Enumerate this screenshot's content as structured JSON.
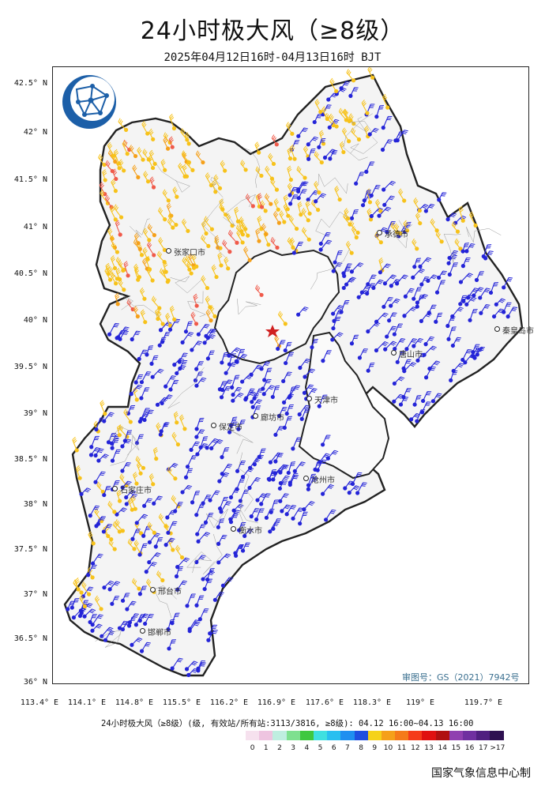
{
  "title": "24小时极大风（≥8级）",
  "subtitle": "2025年04月12日16时-04月13日16时 BJT",
  "map": {
    "lat_labels": [
      "42.5° N",
      "42° N",
      "41.5° N",
      "41° N",
      "40.5° N",
      "40° N",
      "39.5° N",
      "39° N",
      "38.5° N",
      "38° N",
      "37.5° N",
      "37° N",
      "36.5° N",
      "36° N"
    ],
    "lon_labels": [
      "113.4° E",
      "114.1° E",
      "114.8° E",
      "115.5° E",
      "116.2° E",
      "116.9° E",
      "117.6° E",
      "118.3° E",
      "119° E",
      "119.7° E"
    ],
    "approval_number": "审图号：GS（2021）7942号",
    "cities": [
      {
        "name": "承德市"
      },
      {
        "name": "张家口市"
      },
      {
        "name": "天津市"
      },
      {
        "name": "保定市"
      },
      {
        "name": "石家庄市"
      },
      {
        "name": "唐山市"
      },
      {
        "name": "沧州市"
      },
      {
        "name": "衡水市"
      },
      {
        "name": "邢台市"
      },
      {
        "name": "邯郸市"
      },
      {
        "name": "秦皇岛市"
      },
      {
        "name": "廊坊市"
      }
    ]
  },
  "legend": {
    "title": "24小时极大风（≥8级）(级, 有效站/所有站:3113/3816, ≥8级): 04.12 16:00~04.13 16:00",
    "levels": [
      "0",
      "1",
      "2",
      "3",
      "4",
      "5",
      "6",
      "7",
      "8",
      "9",
      "10",
      "11",
      "12",
      "13",
      "14",
      "15",
      "16",
      "17",
      ">17"
    ],
    "colors": [
      "#f6e1ee",
      "#eec4e0",
      "#bfeee0",
      "#7ee08f",
      "#3fc83f",
      "#3fe0e0",
      "#28bff0",
      "#1f8ff0",
      "#1f4fe0",
      "#f5d21a",
      "#f5a01a",
      "#f57a1a",
      "#f53a1a",
      "#e01010",
      "#b01010",
      "#9040b0",
      "#7030a0",
      "#502080",
      "#2d1050"
    ]
  },
  "producer": "国家气象信息中心制"
}
